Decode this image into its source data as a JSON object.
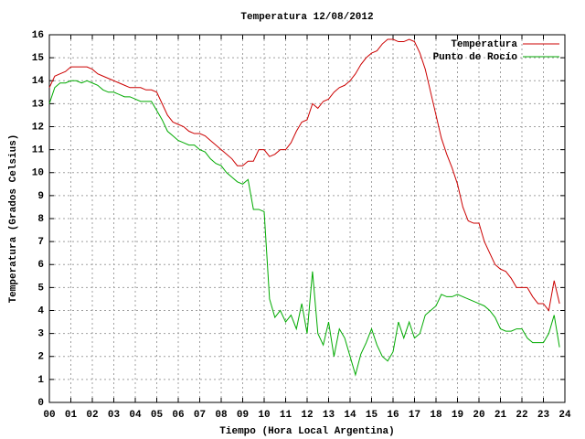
{
  "chart_data": {
    "type": "line",
    "title": "Temperatura 12/08/2012",
    "x_label": "Tiempo (Hora Local Argentina)",
    "y_label": "Temperatura (Grados Celsius)",
    "xlim": [
      0,
      24
    ],
    "ylim": [
      0,
      16
    ],
    "xticks": [
      {
        "value": 0,
        "label": "00"
      },
      {
        "value": 1,
        "label": "01"
      },
      {
        "value": 2,
        "label": "02"
      },
      {
        "value": 3,
        "label": "03"
      },
      {
        "value": 4,
        "label": "04"
      },
      {
        "value": 5,
        "label": "05"
      },
      {
        "value": 6,
        "label": "06"
      },
      {
        "value": 7,
        "label": "07"
      },
      {
        "value": 8,
        "label": "08"
      },
      {
        "value": 9,
        "label": "09"
      },
      10,
      11,
      12,
      13,
      14,
      15,
      16,
      17,
      18,
      19,
      20,
      21,
      22,
      23,
      24
    ],
    "yticks": [
      0,
      1,
      2,
      3,
      4,
      5,
      6,
      7,
      8,
      9,
      10,
      11,
      12,
      13,
      14,
      15,
      16
    ],
    "grid": true,
    "legend": "top-right",
    "x": [
      0,
      0.25,
      0.5,
      0.75,
      1,
      1.25,
      1.5,
      1.75,
      2,
      2.25,
      2.5,
      2.75,
      3,
      3.25,
      3.5,
      3.75,
      4,
      4.25,
      4.5,
      4.75,
      5,
      5.25,
      5.5,
      5.75,
      6,
      6.25,
      6.5,
      6.75,
      7,
      7.25,
      7.5,
      7.75,
      8,
      8.25,
      8.5,
      8.75,
      9,
      9.25,
      9.5,
      9.75,
      10,
      10.25,
      10.5,
      10.75,
      11,
      11.25,
      11.5,
      11.75,
      12,
      12.25,
      12.5,
      12.75,
      13,
      13.25,
      13.5,
      13.75,
      14,
      14.25,
      14.5,
      14.75,
      15,
      15.25,
      15.5,
      15.75,
      16,
      16.25,
      16.5,
      16.75,
      17,
      17.25,
      17.5,
      17.75,
      18,
      18.25,
      18.5,
      18.75,
      19,
      19.25,
      19.5,
      19.75,
      20,
      20.25,
      20.5,
      20.75,
      21,
      21.25,
      21.5,
      21.75,
      22,
      22.25,
      22.5,
      22.75,
      23,
      23.25,
      23.5,
      23.75
    ],
    "series": [
      {
        "name": "Temperatura",
        "color": "#cc0000",
        "values": [
          13.7,
          14.2,
          14.3,
          14.4,
          14.6,
          14.6,
          14.6,
          14.6,
          14.5,
          14.3,
          14.2,
          14.1,
          14.0,
          13.9,
          13.8,
          13.7,
          13.7,
          13.7,
          13.6,
          13.6,
          13.5,
          13.0,
          12.5,
          12.2,
          12.1,
          12.0,
          11.8,
          11.7,
          11.7,
          11.6,
          11.4,
          11.2,
          11.0,
          10.8,
          10.6,
          10.3,
          10.3,
          10.5,
          10.5,
          11.0,
          11.0,
          10.7,
          10.8,
          11.0,
          11.0,
          11.3,
          11.8,
          12.2,
          12.3,
          13.0,
          12.8,
          13.1,
          13.2,
          13.5,
          13.7,
          13.8,
          14.0,
          14.3,
          14.7,
          15.0,
          15.2,
          15.3,
          15.6,
          15.8,
          15.8,
          15.7,
          15.7,
          15.8,
          15.7,
          15.2,
          14.5,
          13.5,
          12.5,
          11.5,
          10.8,
          10.2,
          9.5,
          8.5,
          7.9,
          7.8,
          7.8,
          7.0,
          6.5,
          6.0,
          5.8,
          5.7,
          5.4,
          5.0,
          5.0,
          5.0,
          4.6,
          4.3,
          4.3,
          4.0,
          5.3,
          4.3
        ]
      },
      {
        "name": "Punto de Rocío",
        "color": "#00aa00",
        "values": [
          13.0,
          13.7,
          13.9,
          13.9,
          14.0,
          14.0,
          13.9,
          14.0,
          13.9,
          13.8,
          13.6,
          13.5,
          13.5,
          13.4,
          13.3,
          13.3,
          13.2,
          13.1,
          13.1,
          13.1,
          12.7,
          12.3,
          11.8,
          11.6,
          11.4,
          11.3,
          11.2,
          11.2,
          11.0,
          10.9,
          10.6,
          10.4,
          10.3,
          10.0,
          9.8,
          9.6,
          9.5,
          9.7,
          8.4,
          8.4,
          8.3,
          4.5,
          3.7,
          4.0,
          3.5,
          3.8,
          3.2,
          4.3,
          3.0,
          5.7,
          3.0,
          2.5,
          3.5,
          2.0,
          3.2,
          2.8,
          2.0,
          1.2,
          2.1,
          2.6,
          3.2,
          2.5,
          2.0,
          1.8,
          2.2,
          3.5,
          2.8,
          3.5,
          2.8,
          3.0,
          3.8,
          4.0,
          4.2,
          4.7,
          4.6,
          4.6,
          4.7,
          4.6,
          4.5,
          4.4,
          4.3,
          4.2,
          4.0,
          3.7,
          3.2,
          3.1,
          3.1,
          3.2,
          3.2,
          2.8,
          2.6,
          2.6,
          2.6,
          3.0,
          3.8,
          2.4
        ]
      }
    ]
  }
}
